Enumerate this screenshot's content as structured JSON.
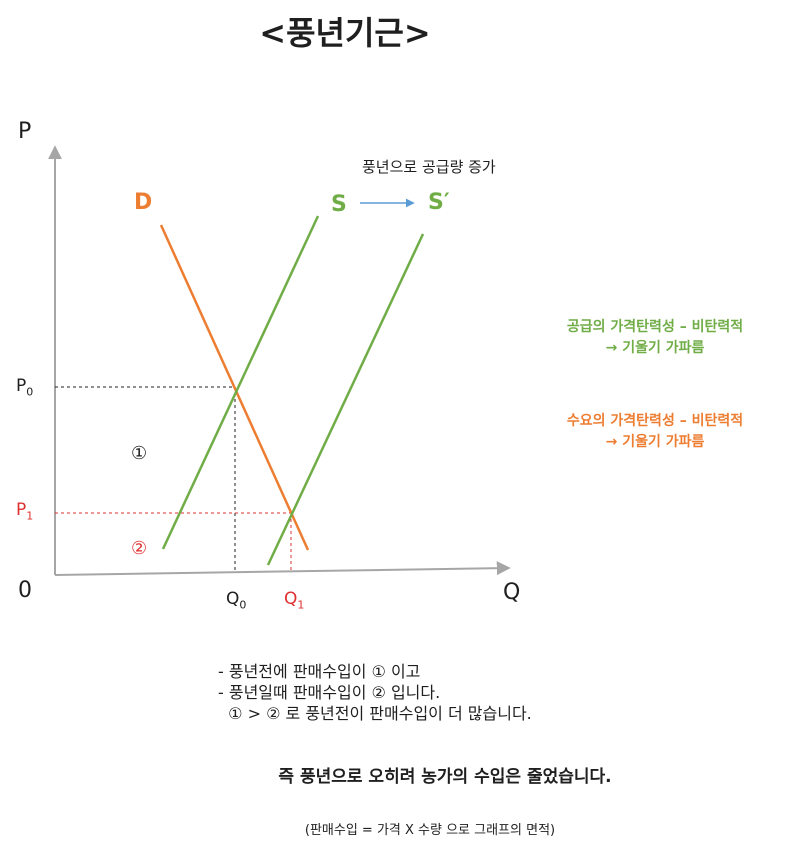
{
  "title": "<풍년기근>",
  "axes": {
    "y_label": "P",
    "x_label": "Q",
    "origin": "0"
  },
  "prices": {
    "p0": "P",
    "p0_sub": "0",
    "p1": "P",
    "p1_sub": "1"
  },
  "quantities": {
    "q0": "Q",
    "q0_sub": "0",
    "q1": "Q",
    "q1_sub": "1"
  },
  "curves": {
    "demand": "D",
    "supply": "S",
    "supply_shifted": "S′"
  },
  "shift_note": "풍년으로 공급량 증가",
  "areas": {
    "area1": "①",
    "area2": "②"
  },
  "elasticity": {
    "supply_line1": "공급의 가격탄력성 – 비탄력적",
    "supply_line2": "→ 기울기 가파름",
    "demand_line1": "수요의 가격탄력성 – 비탄력적",
    "demand_line2": "→ 기울기 가파름"
  },
  "description": [
    "- 풍년전에 판매수입이 ① 이고",
    "- 풍년일때 판매수입이 ② 입니다.",
    "  ① > ② 로 풍년전이 판매수입이 더 많습니다."
  ],
  "conclusion": "즉 풍년으로 오히려 농가의 수입은 줄었습니다.",
  "footnote": "(판매수입 = 가격 X 수량 으로 그래프의 면적)",
  "colors": {
    "demand": "#ed7d31",
    "supply": "#70ad47",
    "arrow": "#5b9bd5",
    "p1_line": "#e03131",
    "text_red": "#e03131",
    "axis": "#a6a6a6",
    "guide": "#1f1f1f"
  }
}
